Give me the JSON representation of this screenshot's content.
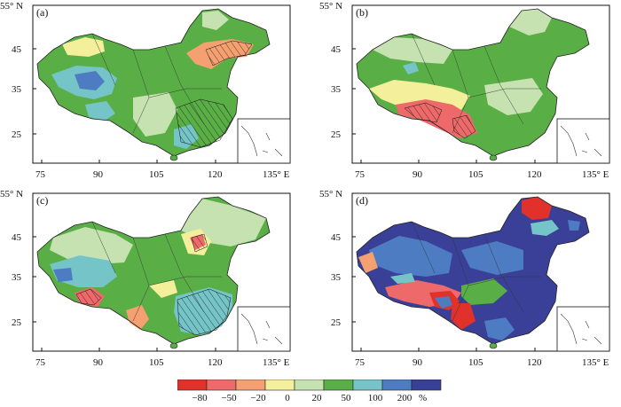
{
  "panels": [
    {
      "label": "(a)",
      "lat_top": "55° N",
      "lat_ticks": [
        "45",
        "35",
        "25"
      ],
      "lon_ticks": [
        "75",
        "90",
        "105",
        "120",
        "135° E"
      ]
    },
    {
      "label": "(b)",
      "lat_top": "55° N",
      "lat_ticks": [
        "45",
        "35",
        "25"
      ],
      "lon_ticks": [
        "75",
        "90",
        "105",
        "120",
        "135° E"
      ]
    },
    {
      "label": "(c)",
      "lat_top": "55° N",
      "lat_ticks": [
        "45",
        "35",
        "25"
      ],
      "lon_ticks": [
        "75",
        "90",
        "105",
        "120",
        "135° E"
      ]
    },
    {
      "label": "(d)",
      "lat_top": "55° N",
      "lat_ticks": [
        "45",
        "35",
        "25"
      ],
      "lon_ticks": [
        "75",
        "90",
        "105",
        "120",
        "135° E"
      ]
    }
  ],
  "legend": {
    "ticks": [
      "−80",
      "−50",
      "−20",
      "0",
      "20",
      "50",
      "100",
      "200"
    ],
    "unit": "%",
    "colors": [
      "#e0322a",
      "#ee6a6a",
      "#f4a070",
      "#f3ef9a",
      "#c6e2b0",
      "#5aae46",
      "#74c4c8",
      "#4d7cc2",
      "#3a3f97"
    ]
  }
}
